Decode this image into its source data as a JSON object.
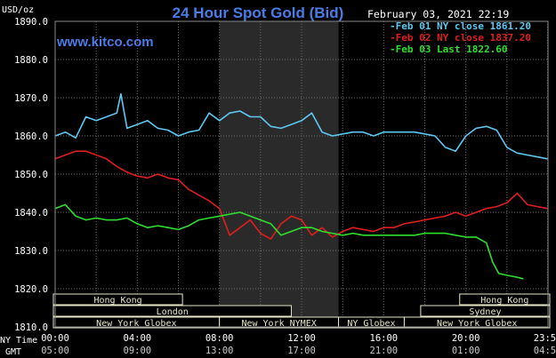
{
  "chart_data": {
    "type": "line",
    "title": "24 Hour Spot Gold (Bid)",
    "watermark": "www.kitco.com",
    "timestamp": "February 03, 2021 22:19",
    "ylabel": "USD/oz",
    "ylim": [
      1810.0,
      1890.0
    ],
    "y_ticks": [
      "1890.0",
      "1880.0",
      "1870.0",
      "1860.0",
      "1850.0",
      "1840.0",
      "1830.0",
      "1820.0",
      "1810.0"
    ],
    "x_ticks_ny": [
      "00:00",
      "04:00",
      "08:00",
      "12:00",
      "16:00",
      "20:00",
      "23:59"
    ],
    "x_ticks_gmt": [
      "05:00",
      "09:00",
      "13:00",
      "17:00",
      "21:00",
      "01:00",
      "04:59"
    ],
    "x_axis_labels": {
      "ny": "NY Time",
      "gmt": "GMT"
    },
    "grid": true,
    "legend_position": "top-right",
    "colors": {
      "background": "#000000",
      "grid": "#6e6e6e",
      "title": "#4a7ce8",
      "text": "#ffffff",
      "session_box": "#e8e8c8",
      "highlight": "#2a2a2a"
    },
    "series": [
      {
        "name": "Feb 01 NY close 1861.20",
        "color": "#5ec8f2",
        "x": [
          0,
          0.5,
          1,
          1.5,
          2,
          2.5,
          3,
          3.2,
          3.5,
          4,
          4.5,
          5,
          5.5,
          6,
          6.5,
          7,
          7.5,
          8,
          8.5,
          9,
          9.5,
          10,
          10.5,
          11,
          11.5,
          12,
          12.5,
          13,
          13.5,
          14,
          14.5,
          15,
          15.5,
          16,
          16.5,
          17,
          17.5,
          18,
          18.5,
          19,
          19.5,
          20,
          20.5,
          21,
          21.5,
          22,
          22.5,
          23,
          23.5,
          23.98
        ],
        "y": [
          1860,
          1861,
          1859.5,
          1865,
          1864,
          1865,
          1866,
          1871,
          1862,
          1863,
          1864,
          1862,
          1861.5,
          1860,
          1861,
          1861.5,
          1866,
          1864,
          1866,
          1866.5,
          1865,
          1865,
          1862.5,
          1862,
          1863,
          1864,
          1866,
          1861,
          1860,
          1860.5,
          1861,
          1861,
          1860,
          1861,
          1861,
          1861,
          1861,
          1860.5,
          1860,
          1857,
          1856,
          1860,
          1862,
          1862.5,
          1861.5,
          1857,
          1855.5,
          1855,
          1854.5,
          1854
        ]
      },
      {
        "name": "Feb 02 NY close 1837.20",
        "color": "#e01e1e",
        "x": [
          0,
          0.5,
          1,
          1.5,
          2,
          2.5,
          3,
          3.5,
          4,
          4.5,
          5,
          5.5,
          6,
          6.5,
          7,
          7.5,
          8,
          8.5,
          9,
          9.5,
          10,
          10.5,
          11,
          11.5,
          12,
          12.5,
          13,
          13.5,
          14,
          14.5,
          15,
          15.5,
          16,
          16.5,
          17,
          17.5,
          18,
          18.5,
          19,
          19.5,
          20,
          20.5,
          21,
          21.5,
          22,
          22.5,
          23,
          23.5,
          23.98
        ],
        "y": [
          1854,
          1855,
          1856,
          1856,
          1855,
          1854,
          1852,
          1850.5,
          1849.5,
          1849,
          1850,
          1849,
          1848.5,
          1846,
          1844.5,
          1843,
          1841,
          1834,
          1836,
          1838,
          1834.5,
          1833,
          1837,
          1839,
          1838,
          1834,
          1836,
          1833.5,
          1835,
          1836,
          1835.5,
          1835,
          1836,
          1836,
          1837,
          1837.5,
          1838,
          1838.5,
          1839,
          1840,
          1839,
          1840,
          1841,
          1841.5,
          1842.5,
          1845,
          1842,
          1841.5,
          1841
        ]
      },
      {
        "name": "Feb 03 Last 1822.60",
        "color": "#2ee02e",
        "x": [
          0,
          0.5,
          1,
          1.5,
          2,
          2.5,
          3,
          3.5,
          4,
          4.5,
          5,
          5.5,
          6,
          6.5,
          7,
          7.5,
          8,
          8.5,
          9,
          9.5,
          10,
          10.5,
          11,
          11.5,
          12,
          12.5,
          13,
          13.5,
          14,
          14.5,
          15,
          15.5,
          16,
          16.5,
          17,
          17.5,
          18,
          18.5,
          19,
          19.5,
          20,
          20.5,
          21,
          21.3,
          21.6,
          22,
          22.5,
          22.8
        ],
        "y": [
          1841,
          1842,
          1839,
          1838,
          1838.5,
          1838,
          1838,
          1838.5,
          1837,
          1836,
          1836.5,
          1836,
          1835.5,
          1836.5,
          1838,
          1838.5,
          1839,
          1839.5,
          1840,
          1839,
          1838,
          1837,
          1834,
          1835,
          1836,
          1836,
          1835,
          1834.5,
          1834,
          1834.5,
          1834,
          1834,
          1834,
          1834,
          1834,
          1834,
          1834.5,
          1834.5,
          1834.5,
          1834,
          1833.5,
          1833.5,
          1832,
          1827,
          1824,
          1823.5,
          1823,
          1822.6
        ]
      }
    ],
    "sessions": [
      {
        "label": "Hong Kong",
        "row": 0,
        "start": -0.2,
        "end": 6.2
      },
      {
        "label": "Hong Kong",
        "row": 0,
        "start": 19.7,
        "end": 24.3
      },
      {
        "label": "London",
        "row": 1,
        "start": -0.2,
        "end": 11.5
      },
      {
        "label": "Sydney",
        "row": 1,
        "start": 17.8,
        "end": 24.3
      },
      {
        "label": "New York Globex",
        "row": 2,
        "start": -0.2,
        "end": 8.0
      },
      {
        "label": "New York NYMEX",
        "row": 2,
        "start": 8.0,
        "end": 13.8
      },
      {
        "label": "NY Globex",
        "row": 2,
        "start": 13.8,
        "end": 17.0
      },
      {
        "label": "New York Globex",
        "row": 2,
        "start": 17.0,
        "end": 24.3
      }
    ],
    "nymex_highlight": [
      8.0,
      13.8
    ]
  }
}
